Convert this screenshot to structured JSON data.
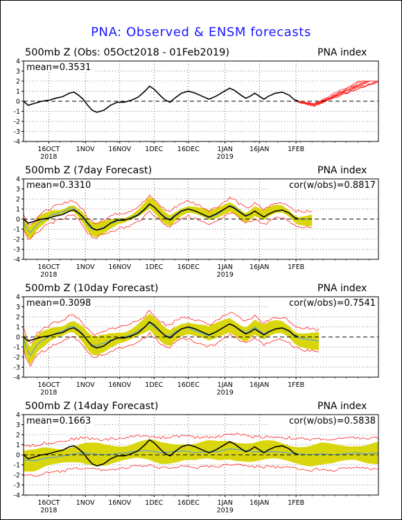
{
  "page": {
    "title": "PNA: Observed & ENSM forecasts",
    "colors": {
      "title": "#1a1aff",
      "observed": "#000000",
      "members": "#ff2020",
      "spread": "#d8d400",
      "ensemble_mean": "#5aa0d8",
      "grid": "#000000"
    }
  },
  "chart_data": [
    {
      "type": "line",
      "title": "500mb Z (Obs: 05Oct2018 - 01Feb2019)",
      "index_label": "PNA index",
      "mean_label": "mean=0.3531",
      "cor_label": "",
      "ylim": [
        -4,
        4
      ],
      "yticks": [
        "4",
        "3",
        "2",
        "1",
        "0",
        "-1",
        "-2",
        "-3",
        "-4"
      ],
      "xlim_days": [
        0,
        155
      ],
      "x_ticks": [
        {
          "day": 11,
          "label": "16OCT",
          "year": "2018"
        },
        {
          "day": 27,
          "label": "1NOV",
          "year": ""
        },
        {
          "day": 42,
          "label": "16NOV",
          "year": ""
        },
        {
          "day": 57,
          "label": "1DEC",
          "year": ""
        },
        {
          "day": 72,
          "label": "16DEC",
          "year": ""
        },
        {
          "day": 88,
          "label": "1JAN",
          "year": "2019"
        },
        {
          "day": 103,
          "label": "16JAN",
          "year": ""
        },
        {
          "day": 119,
          "label": "1FEB",
          "year": ""
        }
      ],
      "grid": "dotted",
      "zero_line": "dashed",
      "observed": [
        [
          0,
          0
        ],
        [
          2,
          -0.4
        ],
        [
          5,
          -0.2
        ],
        [
          8,
          0
        ],
        [
          11,
          0.1
        ],
        [
          14,
          0.3
        ],
        [
          17,
          0.45
        ],
        [
          20,
          0.8
        ],
        [
          22,
          0.9
        ],
        [
          24,
          0.6
        ],
        [
          26,
          0.2
        ],
        [
          28,
          -0.4
        ],
        [
          30,
          -0.9
        ],
        [
          32,
          -1.1
        ],
        [
          35,
          -0.9
        ],
        [
          38,
          -0.4
        ],
        [
          41,
          -0.1
        ],
        [
          44,
          -0.1
        ],
        [
          47,
          0.1
        ],
        [
          50,
          0.4
        ],
        [
          53,
          1.0
        ],
        [
          55,
          1.5
        ],
        [
          57,
          1.2
        ],
        [
          60,
          0.5
        ],
        [
          62,
          0.1
        ],
        [
          64,
          -0.1
        ],
        [
          66,
          0.3
        ],
        [
          69,
          0.8
        ],
        [
          72,
          1.0
        ],
        [
          75,
          0.8
        ],
        [
          78,
          0.5
        ],
        [
          81,
          0.2
        ],
        [
          84,
          0.5
        ],
        [
          87,
          0.9
        ],
        [
          90,
          1.3
        ],
        [
          92,
          1.1
        ],
        [
          95,
          0.6
        ],
        [
          97,
          0.3
        ],
        [
          99,
          0.5
        ],
        [
          101,
          0.8
        ],
        [
          103,
          0.5
        ],
        [
          105,
          0.2
        ],
        [
          107,
          0.5
        ],
        [
          110,
          0.8
        ],
        [
          113,
          0.9
        ],
        [
          116,
          0.6
        ],
        [
          118,
          0.2
        ],
        [
          120,
          0
        ]
      ],
      "forecast_start_day": 119
    },
    {
      "type": "line",
      "title": "500mb Z (7day Forecast)",
      "index_label": "PNA index",
      "mean_label": "mean=0.3310",
      "cor_label": "cor(w/obs)=0.8817",
      "ylim": [
        -4,
        4
      ],
      "yticks": [
        "4",
        "3",
        "2",
        "1",
        "0",
        "-1",
        "-2",
        "-3",
        "-4"
      ],
      "xlim_days": [
        0,
        155
      ],
      "x_ticks": [
        {
          "day": 11,
          "label": "16OCT",
          "year": "2018"
        },
        {
          "day": 27,
          "label": "1NOV",
          "year": ""
        },
        {
          "day": 42,
          "label": "16NOV",
          "year": ""
        },
        {
          "day": 57,
          "label": "1DEC",
          "year": ""
        },
        {
          "day": 72,
          "label": "16DEC",
          "year": ""
        },
        {
          "day": 88,
          "label": "1JAN",
          "year": "2019"
        },
        {
          "day": 103,
          "label": "16JAN",
          "year": ""
        },
        {
          "day": 119,
          "label": "1FEB",
          "year": ""
        }
      ],
      "grid": "dotted",
      "zero_line": "dashed",
      "forecast_end_day": 126,
      "spread_width": 0.45,
      "member_width": 0.75,
      "mean_offset": [
        [
          0,
          -0.3
        ],
        [
          3,
          -1.0
        ],
        [
          6,
          -0.4
        ],
        [
          12,
          0.2
        ],
        [
          20,
          0.3
        ],
        [
          28,
          -0.2
        ],
        [
          34,
          0.1
        ],
        [
          40,
          -0.1
        ],
        [
          50,
          0.1
        ],
        [
          57,
          0
        ],
        [
          65,
          0.1
        ],
        [
          75,
          0
        ],
        [
          85,
          -0.1
        ],
        [
          92,
          0.1
        ],
        [
          100,
          0
        ],
        [
          110,
          0
        ],
        [
          120,
          0
        ],
        [
          126,
          0
        ]
      ]
    },
    {
      "type": "line",
      "title": "500mb Z (10day Forecast)",
      "index_label": "PNA index",
      "mean_label": "mean=0.3098",
      "cor_label": "cor(w/obs)=0.7541",
      "ylim": [
        -4,
        4
      ],
      "yticks": [
        "4",
        "3",
        "2",
        "1",
        "0",
        "-1",
        "-2",
        "-3",
        "-4"
      ],
      "xlim_days": [
        0,
        155
      ],
      "x_ticks": [
        {
          "day": 11,
          "label": "16OCT",
          "year": "2018"
        },
        {
          "day": 27,
          "label": "1NOV",
          "year": ""
        },
        {
          "day": 42,
          "label": "16NOV",
          "year": ""
        },
        {
          "day": 57,
          "label": "1DEC",
          "year": ""
        },
        {
          "day": 72,
          "label": "16DEC",
          "year": ""
        },
        {
          "day": 88,
          "label": "1JAN",
          "year": "2019"
        },
        {
          "day": 103,
          "label": "16JAN",
          "year": ""
        },
        {
          "day": 119,
          "label": "1FEB",
          "year": ""
        }
      ],
      "grid": "dotted",
      "zero_line": "dashed",
      "forecast_end_day": 129,
      "spread_width": 0.7,
      "member_width": 1.1,
      "mean_offset": [
        [
          0,
          -0.2
        ],
        [
          3,
          -1.5
        ],
        [
          6,
          -0.6
        ],
        [
          12,
          0
        ],
        [
          20,
          0.2
        ],
        [
          28,
          0
        ],
        [
          34,
          0.3
        ],
        [
          40,
          0
        ],
        [
          50,
          0.2
        ],
        [
          57,
          -0.2
        ],
        [
          65,
          0.2
        ],
        [
          75,
          -0.2
        ],
        [
          85,
          0
        ],
        [
          92,
          0
        ],
        [
          100,
          0.2
        ],
        [
          110,
          0
        ],
        [
          120,
          -0.1
        ],
        [
          129,
          -0.4
        ]
      ]
    },
    {
      "type": "line",
      "title": "500mb Z (14day Forecast)",
      "index_label": "PNA index",
      "mean_label": "mean=0.1663",
      "cor_label": "cor(w/obs)=0.5838",
      "ylim": [
        -4,
        4
      ],
      "yticks": [
        "4",
        "3",
        "2",
        "1",
        "0",
        "-1",
        "-2",
        "-3",
        "-4"
      ],
      "xlim_days": [
        0,
        155
      ],
      "x_ticks": [
        {
          "day": 11,
          "label": "16OCT",
          "year": "2018"
        },
        {
          "day": 27,
          "label": "1NOV",
          "year": ""
        },
        {
          "day": 42,
          "label": "16NOV",
          "year": ""
        },
        {
          "day": 57,
          "label": "1DEC",
          "year": ""
        },
        {
          "day": 72,
          "label": "16DEC",
          "year": ""
        },
        {
          "day": 88,
          "label": "1JAN",
          "year": "2019"
        },
        {
          "day": 103,
          "label": "16JAN",
          "year": ""
        },
        {
          "day": 119,
          "label": "1FEB",
          "year": ""
        }
      ],
      "grid": "dotted",
      "zero_line": "dashed",
      "forecast_end_day": 155,
      "spread_width": 0.9,
      "member_width": 1.5,
      "ensemble_mean": [
        [
          0,
          -0.5
        ],
        [
          5,
          -0.6
        ],
        [
          10,
          -0.3
        ],
        [
          15,
          -0.2
        ],
        [
          20,
          0
        ],
        [
          25,
          0.2
        ],
        [
          30,
          0.1
        ],
        [
          35,
          0
        ],
        [
          40,
          0.1
        ],
        [
          45,
          0.2
        ],
        [
          50,
          0.4
        ],
        [
          55,
          0.4
        ],
        [
          60,
          0.2
        ],
        [
          65,
          0.3
        ],
        [
          70,
          0.4
        ],
        [
          75,
          0.2
        ],
        [
          80,
          0.3
        ],
        [
          85,
          0.3
        ],
        [
          90,
          0.6
        ],
        [
          95,
          0.5
        ],
        [
          100,
          0.3
        ],
        [
          105,
          0.3
        ],
        [
          110,
          0.3
        ],
        [
          115,
          0.2
        ],
        [
          120,
          0.1
        ],
        [
          125,
          0
        ],
        [
          130,
          0.1
        ],
        [
          135,
          0
        ],
        [
          140,
          0.1
        ],
        [
          145,
          0.2
        ],
        [
          150,
          0.1
        ],
        [
          155,
          0.2
        ]
      ]
    }
  ]
}
